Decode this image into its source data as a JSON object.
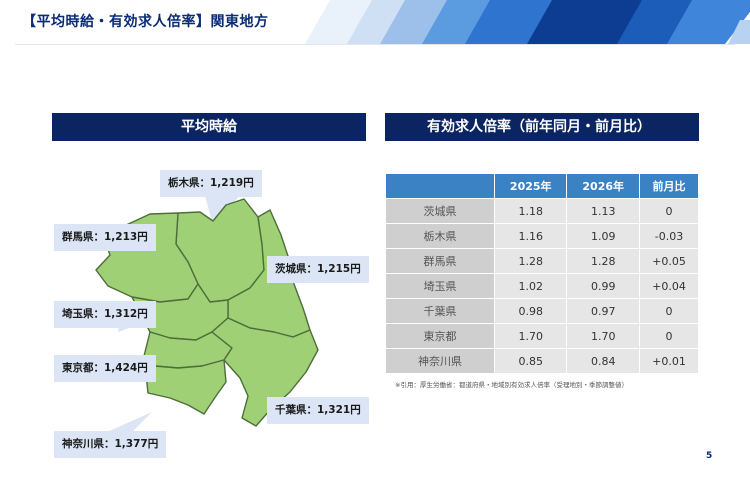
{
  "slide": {
    "title": "【平均時給・有効求人倍率】関東地方",
    "page_number": "5"
  },
  "left_panel": {
    "header": "平均時給",
    "callouts": {
      "tochigi": "栃木県：1,219円",
      "gunma": "群馬県：1,213円",
      "ibaraki": "茨城県：1,215円",
      "saitama": "埼玉県：1,312円",
      "tokyo": "東京都：1,424円",
      "chiba": "千葉県：1,321円",
      "kanagawa": "神奈川県：1,377円"
    }
  },
  "right_panel": {
    "header": "有効求人倍率（前年同月・前月比）",
    "table": {
      "columns": [
        "",
        "2025年",
        "2026年",
        "前月比"
      ],
      "rows": [
        [
          "茨城県",
          "1.18",
          "1.13",
          "0"
        ],
        [
          "栃木県",
          "1.16",
          "1.09",
          "-0.03"
        ],
        [
          "群馬県",
          "1.28",
          "1.28",
          "+0.05"
        ],
        [
          "埼玉県",
          "1.02",
          "0.99",
          "+0.04"
        ],
        [
          "千葉県",
          "0.98",
          "0.97",
          "0"
        ],
        [
          "東京都",
          "1.70",
          "1.70",
          "0"
        ],
        [
          "神奈川県",
          "0.85",
          "0.84",
          "+0.01"
        ]
      ]
    },
    "note": "※引用：厚生労働省：都道府県・地域別有効求人倍率（受理地別・季節調整値）"
  },
  "colors": {
    "header_navy": "#0b2462",
    "title_blue": "#0a2c74",
    "table_header_blue": "#3b82c4",
    "map_green": "#9fd075",
    "callout_bg": "#dbe5f5"
  }
}
